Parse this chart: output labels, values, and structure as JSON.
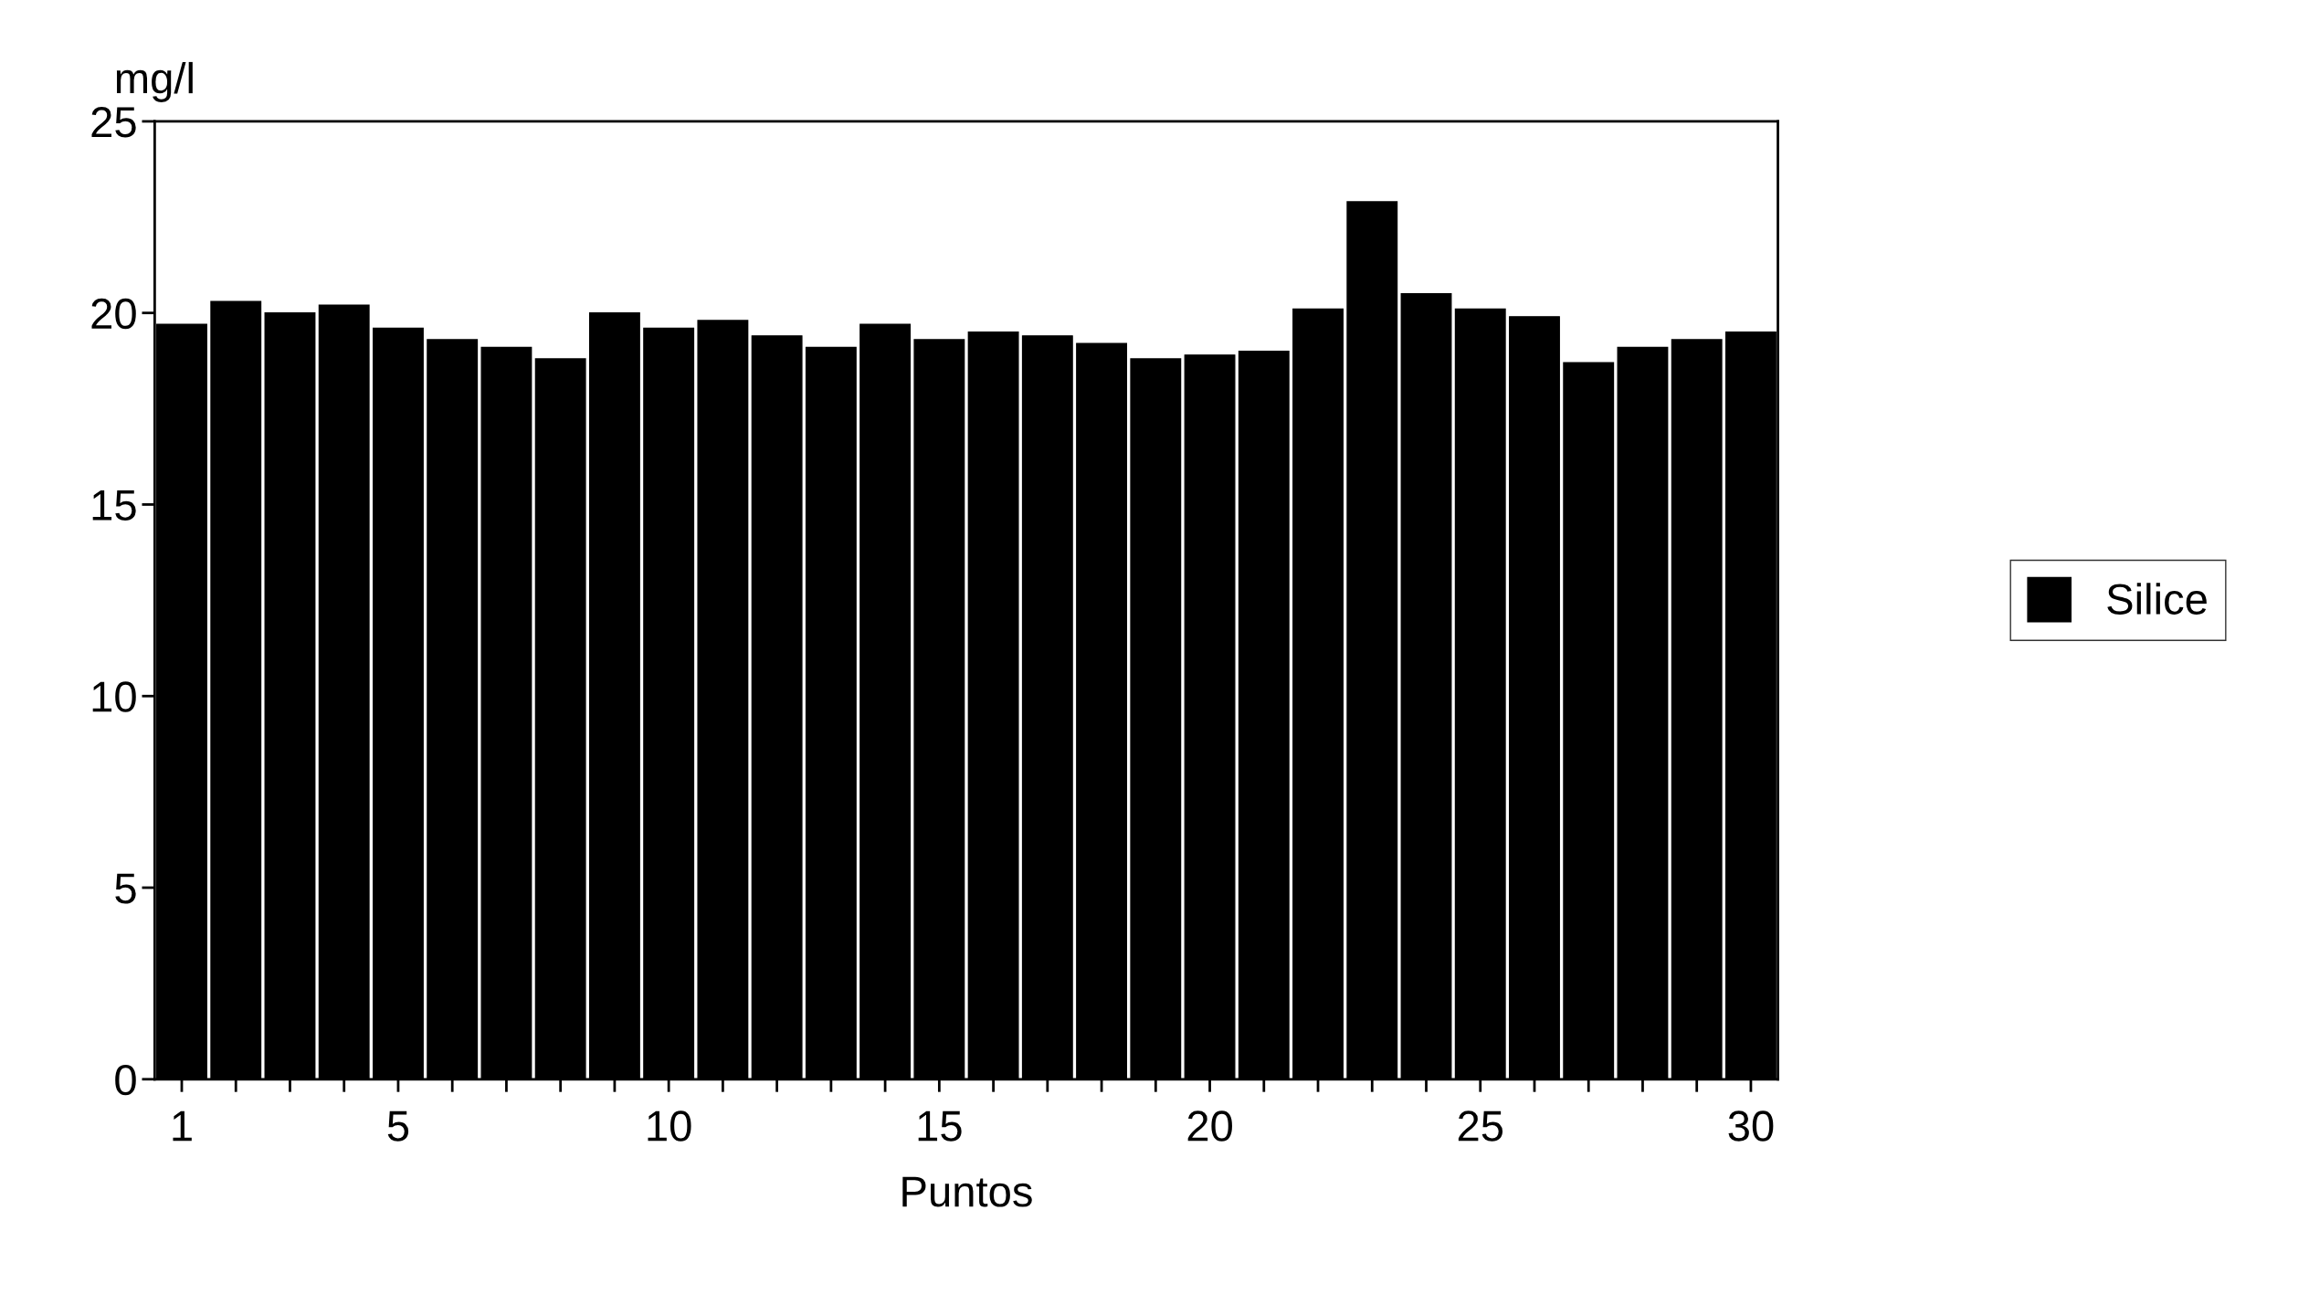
{
  "chart_data": {
    "type": "bar",
    "ylabel": "mg/l",
    "xlabel": "Puntos",
    "categories": [
      "1",
      null,
      null,
      null,
      "5",
      null,
      null,
      null,
      null,
      "10",
      null,
      null,
      null,
      null,
      "15",
      null,
      null,
      null,
      null,
      "20",
      null,
      null,
      null,
      null,
      "25",
      null,
      null,
      null,
      null,
      "30"
    ],
    "series": [
      {
        "name": "Silice",
        "color": "#000000",
        "values": [
          19.7,
          20.3,
          20.0,
          20.2,
          19.6,
          19.3,
          19.1,
          18.8,
          20.0,
          19.6,
          19.8,
          19.4,
          19.1,
          19.7,
          19.3,
          19.5,
          19.4,
          19.2,
          18.8,
          18.9,
          19.0,
          20.1,
          22.9,
          20.5,
          20.1,
          19.9,
          18.7,
          19.1,
          19.3,
          19.5
        ]
      }
    ],
    "ylim": [
      0,
      25
    ],
    "yticks": [
      0,
      5,
      10,
      15,
      20,
      25
    ],
    "grid": false,
    "legend": "right"
  }
}
